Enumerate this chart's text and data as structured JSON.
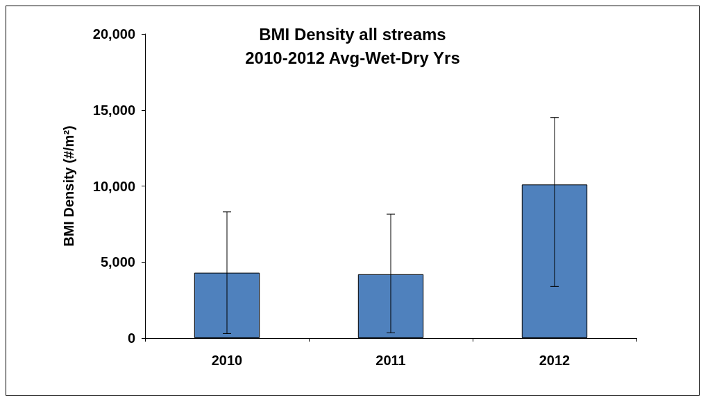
{
  "chart_data": {
    "type": "bar",
    "title": "BMI Density all streams\n2010-2012 Avg-Wet-Dry Yrs",
    "ylabel": "BMI Density (#/m²)",
    "categories": [
      "2010",
      "2011",
      "2012"
    ],
    "values": [
      4300,
      4200,
      10100
    ],
    "errors": [
      [
        300,
        8300
      ],
      [
        350,
        8150
      ],
      [
        3400,
        14500
      ]
    ],
    "color": "#4f81bd",
    "ylim": [
      0,
      20000
    ],
    "yticks": [
      0,
      {
        "value": 5000,
        "label": "5,000"
      },
      {
        "value": 10000,
        "label": "10,000"
      },
      {
        "value": 15000,
        "label": "15,000"
      },
      {
        "value": 20000,
        "label": "20,000"
      }
    ],
    "grid": false
  }
}
